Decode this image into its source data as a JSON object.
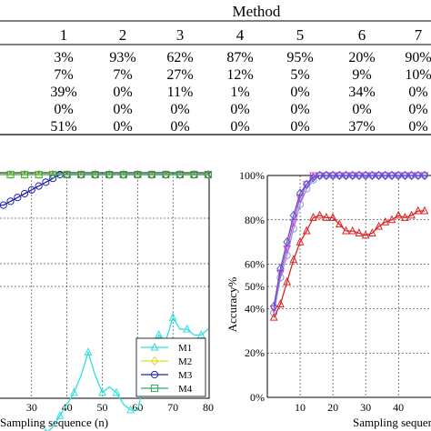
{
  "table": {
    "header": "Method",
    "columns": [
      "1",
      "2",
      "3",
      "4",
      "5",
      "6",
      "7"
    ],
    "rows": [
      [
        "3%",
        "93%",
        "62%",
        "87%",
        "95%",
        "20%",
        "90%"
      ],
      [
        "7%",
        "7%",
        "27%",
        "12%",
        "5%",
        "9%",
        "10%"
      ],
      [
        "39%",
        "0%",
        "11%",
        "1%",
        "0%",
        "34%",
        "0%"
      ],
      [
        "0%",
        "0%",
        "0%",
        "0%",
        "0%",
        "0%",
        "0%"
      ],
      [
        "51%",
        "0%",
        "0%",
        "0%",
        "0%",
        "37%",
        "0%"
      ]
    ]
  },
  "chart_data": [
    {
      "type": "line",
      "xlabel": "Sampling sequence (n)",
      "ylabel": "",
      "xlim": [
        20,
        80
      ],
      "xticks": [
        30,
        40,
        50,
        60,
        70,
        80
      ],
      "grid": "dashed",
      "legend_position": "bottom-right",
      "series": [
        {
          "name": "M1",
          "color": "#33dddd",
          "marker": "triangle",
          "x": [
            20,
            24,
            26,
            28,
            30,
            32,
            34,
            36,
            38,
            40,
            42,
            44,
            46,
            48,
            50,
            52,
            54,
            56,
            58,
            60,
            62,
            64,
            66,
            68,
            70,
            72,
            74,
            76,
            78,
            80
          ],
          "y": [
            56,
            55,
            56,
            57,
            56,
            57,
            57,
            58,
            60,
            62,
            64,
            67,
            71,
            67,
            64,
            65,
            64,
            62,
            61,
            61,
            66,
            70,
            74,
            73,
            77,
            75,
            75,
            74,
            74,
            75
          ]
        },
        {
          "name": "M2",
          "color": "#dddd22",
          "marker": "diamond",
          "x": [
            20,
            24,
            28,
            32,
            36,
            40,
            44,
            48,
            52,
            56,
            60,
            64,
            68,
            72,
            76,
            80
          ],
          "y": [
            100,
            100,
            100,
            100,
            100,
            100,
            100,
            100,
            100,
            100,
            100,
            100,
            100,
            100,
            100,
            100
          ]
        },
        {
          "name": "M3",
          "color": "#2222aa",
          "marker": "circle",
          "x": [
            20,
            22,
            24,
            26,
            28,
            30,
            32,
            34,
            36,
            38,
            40,
            44,
            48,
            52,
            56,
            60,
            64,
            68,
            72,
            76,
            80
          ],
          "y": [
            96,
            96,
            96.5,
            97,
            97.5,
            98,
            98.5,
            99,
            99.5,
            100,
            100,
            100,
            100,
            100,
            100,
            100,
            100,
            100,
            100,
            100,
            100
          ]
        },
        {
          "name": "M4",
          "color": "#33aa55",
          "marker": "square",
          "x": [
            20,
            24,
            28,
            32,
            36,
            40,
            44,
            48,
            52,
            56,
            60,
            64,
            68,
            72,
            76,
            80
          ],
          "y": [
            100,
            100,
            100,
            100,
            100,
            100,
            100,
            100,
            100,
            100,
            100,
            100,
            100,
            100,
            100,
            100
          ]
        }
      ]
    },
    {
      "type": "line",
      "xlabel": "Sampling sequence",
      "ylabel": "Accuracy%",
      "xlim": [
        0,
        48
      ],
      "ylim": [
        0,
        100
      ],
      "xticks": [
        10,
        20,
        30,
        40
      ],
      "yticks": [
        "0%",
        "20%",
        "40%",
        "50%",
        "60%",
        "80%",
        "100%"
      ],
      "yticks_values": [
        0,
        20,
        40,
        50,
        60,
        80,
        100
      ],
      "grid": "dashed",
      "series": [
        {
          "name": "",
          "color": "#dd2222",
          "marker": "triangle",
          "x": [
            2,
            4,
            6,
            8,
            10,
            12,
            14,
            16,
            18,
            20,
            22,
            24,
            26,
            28,
            30,
            32,
            34,
            36,
            38,
            40,
            42,
            44,
            46,
            48
          ],
          "y": [
            36,
            42,
            52,
            62,
            70,
            75,
            81,
            82,
            81,
            81,
            78,
            75,
            75,
            74,
            73,
            74,
            77,
            79,
            80,
            82,
            81,
            82,
            84,
            84
          ]
        },
        {
          "name": "",
          "color": "#5555cc",
          "marker": "diamond",
          "x": [
            2,
            4,
            6,
            8,
            10,
            12,
            14,
            16,
            18,
            20,
            22,
            24,
            26,
            28,
            30,
            32,
            34,
            36,
            38,
            40,
            42,
            44,
            46,
            48
          ],
          "y": [
            41,
            58,
            70,
            82,
            92,
            96,
            99,
            100,
            100,
            100,
            100,
            100,
            100,
            100,
            100,
            100,
            100,
            100,
            100,
            100,
            100,
            100,
            100,
            100
          ]
        },
        {
          "name": "",
          "color": "#cc44cc",
          "marker": "triangle-down",
          "x": [
            2,
            4,
            6,
            8,
            10,
            12,
            14,
            16,
            18,
            20,
            22,
            24,
            26,
            28,
            30,
            32,
            34,
            36,
            38,
            40,
            42,
            44,
            46,
            48
          ],
          "y": [
            40,
            56,
            67,
            79,
            90,
            96,
            100,
            100,
            100,
            100,
            100,
            100,
            100,
            100,
            100,
            100,
            100,
            100,
            100,
            100,
            100,
            100,
            100,
            100
          ]
        },
        {
          "name": "",
          "color": "#8899dd",
          "marker": "circle",
          "x": [
            2,
            4,
            6,
            8,
            10,
            12,
            14,
            16,
            18,
            20,
            22,
            24,
            26,
            28,
            30,
            32,
            34,
            36,
            38,
            40,
            42,
            44,
            46,
            48
          ],
          "y": [
            38,
            54,
            64,
            76,
            87,
            94,
            98,
            100,
            100,
            100,
            100,
            100,
            100,
            100,
            100,
            100,
            100,
            100,
            100,
            100,
            100,
            100,
            100,
            100
          ]
        }
      ]
    }
  ]
}
